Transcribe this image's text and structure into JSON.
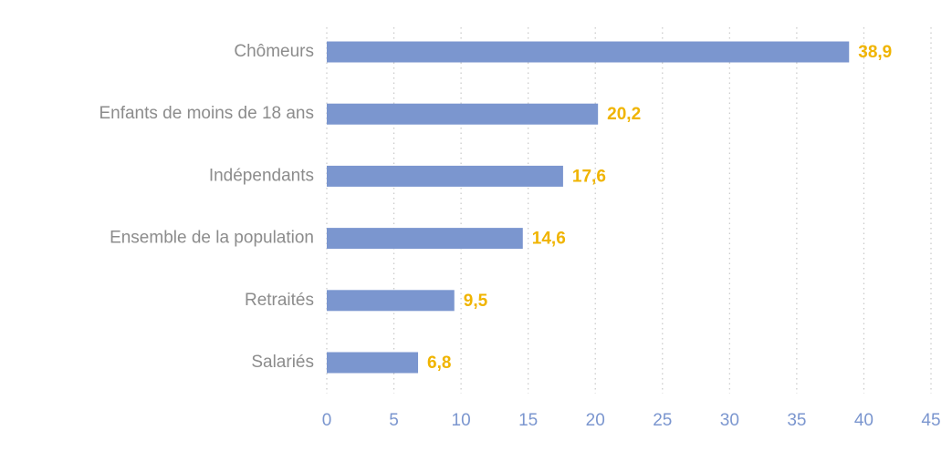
{
  "chart_data": {
    "type": "bar",
    "orientation": "horizontal",
    "categories": [
      "Chômeurs",
      "Enfants de moins de 18 ans",
      "Indépendants",
      "Ensemble de la population",
      "Retraités",
      "Salariés"
    ],
    "values": [
      38.9,
      20.2,
      17.6,
      14.6,
      9.5,
      6.8
    ],
    "value_labels": [
      "38,9",
      "20,2",
      "17,6",
      "14,6",
      "9,5",
      "6,8"
    ],
    "xlim": [
      0,
      45
    ],
    "xticks": [
      0,
      5,
      10,
      15,
      20,
      25,
      30,
      35,
      40,
      45
    ],
    "xtick_labels": [
      "0",
      "5",
      "10",
      "15",
      "20",
      "25",
      "30",
      "35",
      "40",
      "45"
    ],
    "grid": "vertical-dotted",
    "colors": {
      "bar": "#7b96cf",
      "value_label": "#f0b400",
      "tick_label": "#7b96cf",
      "category_label": "#8c8c8c",
      "grid": "#c8c8c8"
    }
  }
}
